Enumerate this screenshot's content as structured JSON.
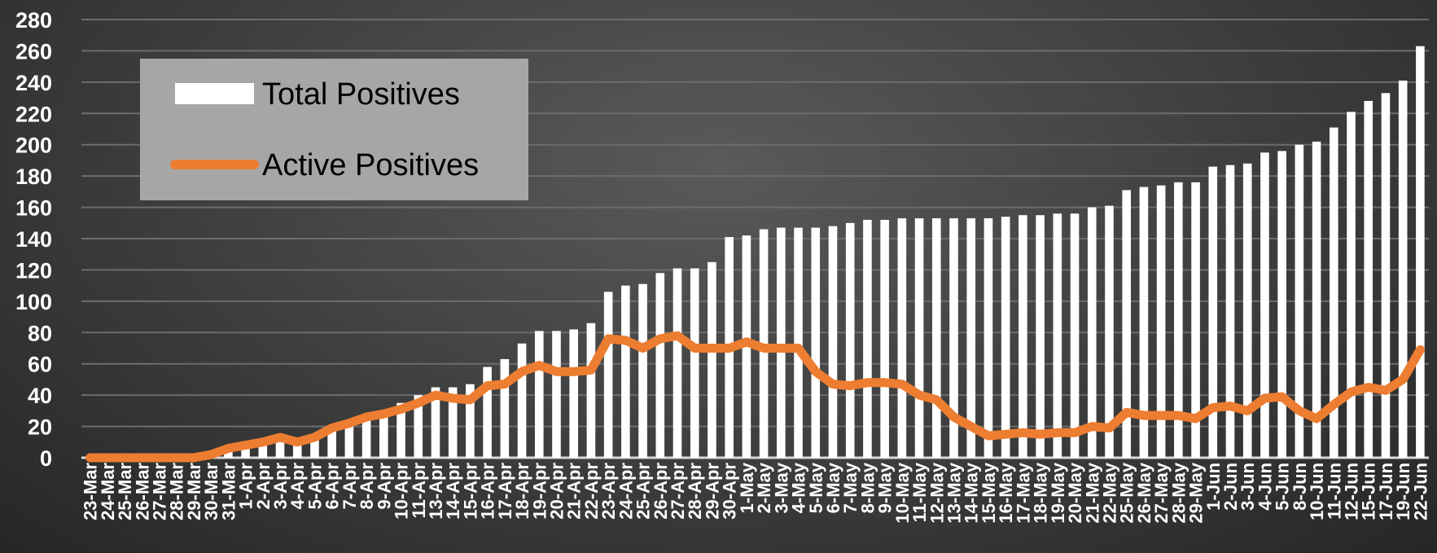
{
  "chart_data": {
    "type": "bar",
    "title": "",
    "xlabel": "",
    "ylabel": "",
    "ylim": [
      0,
      280
    ],
    "yticks": [
      0,
      20,
      40,
      60,
      80,
      100,
      120,
      140,
      160,
      180,
      200,
      220,
      240,
      260,
      280
    ],
    "grid": true,
    "legend_position": "top-left",
    "categories": [
      "23-Mar",
      "24-Mar",
      "25-Mar",
      "26-Mar",
      "27-Mar",
      "28-Mar",
      "29-Mar",
      "30-Mar",
      "31-Mar",
      "1-Apr",
      "2-Apr",
      "3-Apr",
      "4-Apr",
      "5-Apr",
      "6-Apr",
      "7-Apr",
      "8-Apr",
      "9-Apr",
      "10-Apr",
      "11-Apr",
      "13-Apr",
      "14-Apr",
      "15-Apr",
      "16-Apr",
      "17-Apr",
      "18-Apr",
      "19-Apr",
      "20-Apr",
      "21-Apr",
      "22-Apr",
      "23-Apr",
      "24-Apr",
      "25-Apr",
      "26-Apr",
      "27-Apr",
      "28-Apr",
      "29-Apr",
      "30-Apr",
      "1-May",
      "2-May",
      "3-May",
      "4-May",
      "5-May",
      "6-May",
      "7-May",
      "8-May",
      "9-May",
      "10-May",
      "11-May",
      "12-May",
      "13-May",
      "14-May",
      "15-May",
      "16-May",
      "17-May",
      "18-May",
      "19-May",
      "20-May",
      "21-May",
      "22-May",
      "25-May",
      "26-May",
      "27-May",
      "28-May",
      "29-May",
      "1-Jun",
      "2-Jun",
      "3-Jun",
      "4-Jun",
      "5-Jun",
      "8-Jun",
      "10-Jun",
      "11-Jun",
      "12-Jun",
      "15-Jun",
      "17-Jun",
      "19-Jun",
      "22-Jun"
    ],
    "series": [
      {
        "name": "Total Positives",
        "type": "bar",
        "color": "#ffffff",
        "values": [
          0,
          0,
          0,
          0,
          0,
          0,
          0,
          2,
          5,
          7,
          9,
          12,
          12,
          15,
          20,
          22,
          25,
          28,
          35,
          40,
          45,
          45,
          47,
          58,
          63,
          73,
          81,
          81,
          82,
          86,
          106,
          110,
          111,
          118,
          121,
          121,
          125,
          141,
          142,
          146,
          147,
          147,
          147,
          148,
          150,
          152,
          152,
          153,
          153,
          153,
          153,
          153,
          153,
          154,
          155,
          155,
          156,
          156,
          160,
          161,
          171,
          173,
          174,
          176,
          176,
          186,
          187,
          188,
          195,
          196,
          200,
          202,
          211,
          221,
          228,
          233,
          241,
          263
        ]
      },
      {
        "name": "Active Positives",
        "type": "line",
        "color": "#ed7d31",
        "values": [
          0,
          0,
          0,
          0,
          0,
          0,
          0,
          2,
          6,
          8,
          10,
          13,
          10,
          13,
          19,
          22,
          26,
          28,
          31,
          35,
          40,
          38,
          37,
          46,
          47,
          55,
          59,
          55,
          55,
          56,
          76,
          75,
          70,
          76,
          78,
          70,
          70,
          70,
          74,
          70,
          70,
          70,
          55,
          47,
          46,
          48,
          48,
          47,
          40,
          37,
          26,
          20,
          14,
          15,
          16,
          15,
          16,
          16,
          20,
          19,
          29,
          27,
          27,
          27,
          25,
          32,
          33,
          30,
          38,
          39,
          30,
          25,
          34,
          42,
          45,
          43,
          50,
          69
        ]
      }
    ]
  }
}
